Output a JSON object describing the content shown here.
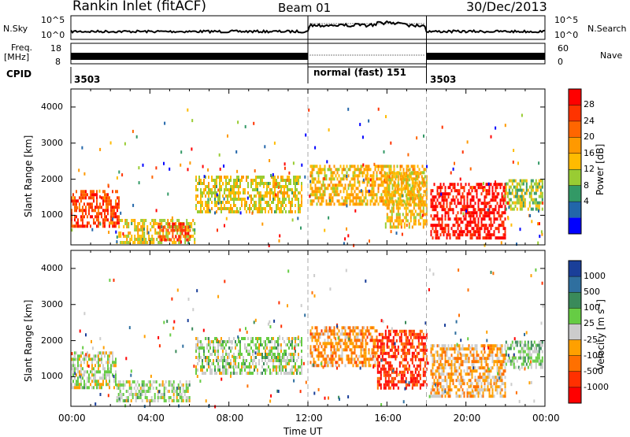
{
  "header": {
    "title": "Rankin Inlet (fitACF)",
    "beam": "Beam 01",
    "date": "30/Dec/2013"
  },
  "top_panels": {
    "nsky_label": "N.Sky",
    "nsearch_label": "N.Search",
    "freq_label": "Freq.",
    "freq_unit": "[MHz]",
    "nave_label": "Nave",
    "cpid_label": "CPID",
    "left_ticks_1": [
      "10^5",
      "10^0"
    ],
    "right_ticks_1": [
      "10^5",
      "10^0"
    ],
    "left_ticks_2": [
      "18",
      "8"
    ],
    "right_ticks_2": [
      "60",
      "0"
    ],
    "cpid_segments": [
      {
        "id": "3503",
        "start_hour": 0,
        "end_hour": 12
      },
      {
        "id": "normal (fast) 151",
        "start_hour": 12,
        "end_hour": 18
      },
      {
        "id": "3503",
        "start_hour": 18,
        "end_hour": 24
      }
    ]
  },
  "power_panel": {
    "ylabel": "Slant Range [km]",
    "yticks": [
      "4000",
      "3000",
      "2000",
      "1000"
    ],
    "colorbar_label": "Power [dB]",
    "colorbar_ticks": [
      "28",
      "24",
      "20",
      "16",
      "12",
      "8",
      "4"
    ],
    "colorbar_colors": [
      "#ff0000",
      "#ff3300",
      "#ff6600",
      "#ff9900",
      "#ffbb00",
      "#99cc33",
      "#339966",
      "#2266aa",
      "#0000ff"
    ]
  },
  "velocity_panel": {
    "ylabel": "Slant Range [km]",
    "yticks": [
      "4000",
      "3000",
      "2000",
      "1000"
    ],
    "colorbar_label": "Velocity [m s",
    "colorbar_sup": "-1",
    "colorbar_label_end": "]",
    "colorbar_ticks": [
      "1000",
      "500",
      "100",
      "25",
      "-25",
      "-100",
      "-500",
      "-1000"
    ],
    "colorbar_colors": [
      "#1a3f99",
      "#2f6f9f",
      "#3a8a5a",
      "#66cc44",
      "#cccccc",
      "#ffa000",
      "#ff7000",
      "#ff3000",
      "#ff0000"
    ]
  },
  "xaxis": {
    "ticks": [
      "00:00",
      "04:00",
      "08:00",
      "12:00",
      "16:00",
      "20:00",
      "00:00"
    ],
    "label": "Time UT"
  },
  "chart_data": {
    "type": "heatmap",
    "title": "Rankin Inlet (fitACF)",
    "subtitle": "Beam 01",
    "date": "30/Dec/2013",
    "xlabel": "Time UT",
    "ylabel": "Slant Range [km]",
    "xlim_hours": [
      0,
      24
    ],
    "ylim_km": [
      180,
      4500
    ],
    "panels": [
      {
        "name": "Power [dB]",
        "clim": [
          0,
          30
        ],
        "regions": [
          {
            "t0": 0.0,
            "t1": 2.4,
            "r0": 700,
            "r1": 1700,
            "value": 24
          },
          {
            "t0": 2.4,
            "t1": 6.3,
            "r0": 250,
            "r1": 900,
            "value": 14
          },
          {
            "t0": 4.4,
            "t1": 6.0,
            "r0": 300,
            "r1": 800,
            "value": 24
          },
          {
            "t0": 6.3,
            "t1": 11.7,
            "r0": 1100,
            "r1": 2100,
            "value": 14
          },
          {
            "t0": 12.1,
            "t1": 18.0,
            "r0": 1300,
            "r1": 2400,
            "value": 16
          },
          {
            "t0": 15.9,
            "t1": 18.0,
            "r0": 700,
            "r1": 2200,
            "value": 16
          },
          {
            "t0": 18.2,
            "t1": 22.0,
            "r0": 400,
            "r1": 1900,
            "value": 28
          },
          {
            "t0": 22.0,
            "t1": 23.9,
            "r0": 1200,
            "r1": 2000,
            "value": 12
          }
        ]
      },
      {
        "name": "Velocity [m s-1]",
        "clim": [
          -1000,
          1000
        ],
        "regions": [
          {
            "t0": 0.0,
            "t1": 2.3,
            "r0": 700,
            "r1": 1700,
            "value": 60
          },
          {
            "t0": 2.3,
            "t1": 6.0,
            "r0": 300,
            "r1": 900,
            "value": 80
          },
          {
            "t0": 6.3,
            "t1": 11.7,
            "r0": 1100,
            "r1": 2100,
            "value": 100
          },
          {
            "t0": 12.1,
            "t1": 15.5,
            "r0": 1300,
            "r1": 2400,
            "value": -300
          },
          {
            "t0": 15.5,
            "t1": 18.0,
            "r0": 700,
            "r1": 2300,
            "value": -700
          },
          {
            "t0": 18.2,
            "t1": 22.0,
            "r0": 500,
            "r1": 1900,
            "value": -200
          },
          {
            "t0": 22.0,
            "t1": 23.9,
            "r0": 1300,
            "r1": 2000,
            "value": 200
          }
        ]
      }
    ],
    "mode_changes_hours": [
      12,
      18
    ]
  }
}
